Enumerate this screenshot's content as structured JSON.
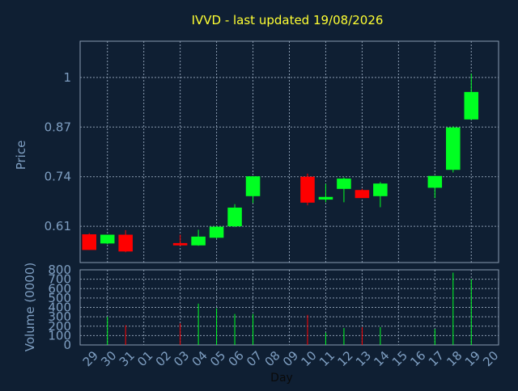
{
  "title": "IVVD - last updated 19/08/2026",
  "colors": {
    "background": "#0f1f33",
    "frame": "#8a9bb0",
    "grid": "#8a9bb0",
    "title": "#ffff33",
    "axis_text": "#7f9fc2",
    "up": "#00ff22",
    "down": "#ff0000"
  },
  "chart_data": [
    {
      "type": "candlestick",
      "title": "IVVD - last updated 19/08/2026",
      "ylabel": "Price",
      "ylim": [
        0.515,
        1.095
      ],
      "yticks": [
        0.61,
        0.74,
        0.87,
        1
      ],
      "ytick_labels": [
        "0.61",
        "0.74",
        "0.87",
        "1"
      ],
      "grid": true,
      "candles": [
        {
          "day": "29",
          "open": 0.589,
          "high": 0.592,
          "low": 0.548,
          "close": 0.548
        },
        {
          "day": "30",
          "open": 0.565,
          "high": 0.588,
          "low": 0.563,
          "close": 0.588
        },
        {
          "day": "31",
          "open": 0.588,
          "high": 0.6,
          "low": 0.542,
          "close": 0.544
        },
        {
          "day": "03",
          "open": 0.566,
          "high": 0.588,
          "low": 0.559,
          "close": 0.56
        },
        {
          "day": "04",
          "open": 0.56,
          "high": 0.601,
          "low": 0.559,
          "close": 0.583
        },
        {
          "day": "05",
          "open": 0.58,
          "high": 0.611,
          "low": 0.578,
          "close": 0.609
        },
        {
          "day": "06",
          "open": 0.61,
          "high": 0.668,
          "low": 0.608,
          "close": 0.659
        },
        {
          "day": "07",
          "open": 0.689,
          "high": 0.741,
          "low": 0.671,
          "close": 0.741
        },
        {
          "day": "10",
          "open": 0.74,
          "high": 0.748,
          "low": 0.665,
          "close": 0.672
        },
        {
          "day": "11",
          "open": 0.68,
          "high": 0.721,
          "low": 0.673,
          "close": 0.687
        },
        {
          "day": "12",
          "open": 0.708,
          "high": 0.738,
          "low": 0.673,
          "close": 0.735
        },
        {
          "day": "13",
          "open": 0.705,
          "high": 0.708,
          "low": 0.684,
          "close": 0.684
        },
        {
          "day": "14",
          "open": 0.689,
          "high": 0.726,
          "low": 0.66,
          "close": 0.722
        },
        {
          "day": "17",
          "open": 0.711,
          "high": 0.742,
          "low": 0.684,
          "close": 0.742
        },
        {
          "day": "18",
          "open": 0.758,
          "high": 0.872,
          "low": 0.751,
          "close": 0.869
        },
        {
          "day": "19",
          "open": 0.89,
          "high": 1.01,
          "low": 0.889,
          "close": 0.962
        }
      ]
    },
    {
      "type": "bar",
      "xlabel": "Day",
      "ylabel": "Volume (0000)",
      "ylim": [
        0,
        800
      ],
      "yticks": [
        0,
        100,
        200,
        300,
        400,
        500,
        600,
        700,
        800
      ],
      "ytick_labels": [
        "0",
        "100",
        "200",
        "300",
        "400",
        "500",
        "600",
        "700",
        "800"
      ],
      "categories": [
        "29",
        "30",
        "31",
        "01",
        "02",
        "03",
        "04",
        "05",
        "06",
        "07",
        "08",
        "09",
        "10",
        "11",
        "12",
        "13",
        "14",
        "15",
        "16",
        "17",
        "18",
        "19",
        "20"
      ],
      "values": [
        0,
        300,
        210,
        0,
        0,
        230,
        440,
        390,
        330,
        330,
        0,
        0,
        320,
        130,
        180,
        190,
        190,
        0,
        0,
        170,
        770,
        700,
        0
      ],
      "directions": [
        "down",
        "up",
        "down",
        "none",
        "none",
        "down",
        "up",
        "up",
        "up",
        "up",
        "none",
        "none",
        "down",
        "up",
        "up",
        "down",
        "up",
        "none",
        "none",
        "up",
        "up",
        "up",
        "none"
      ],
      "grid": true
    }
  ]
}
